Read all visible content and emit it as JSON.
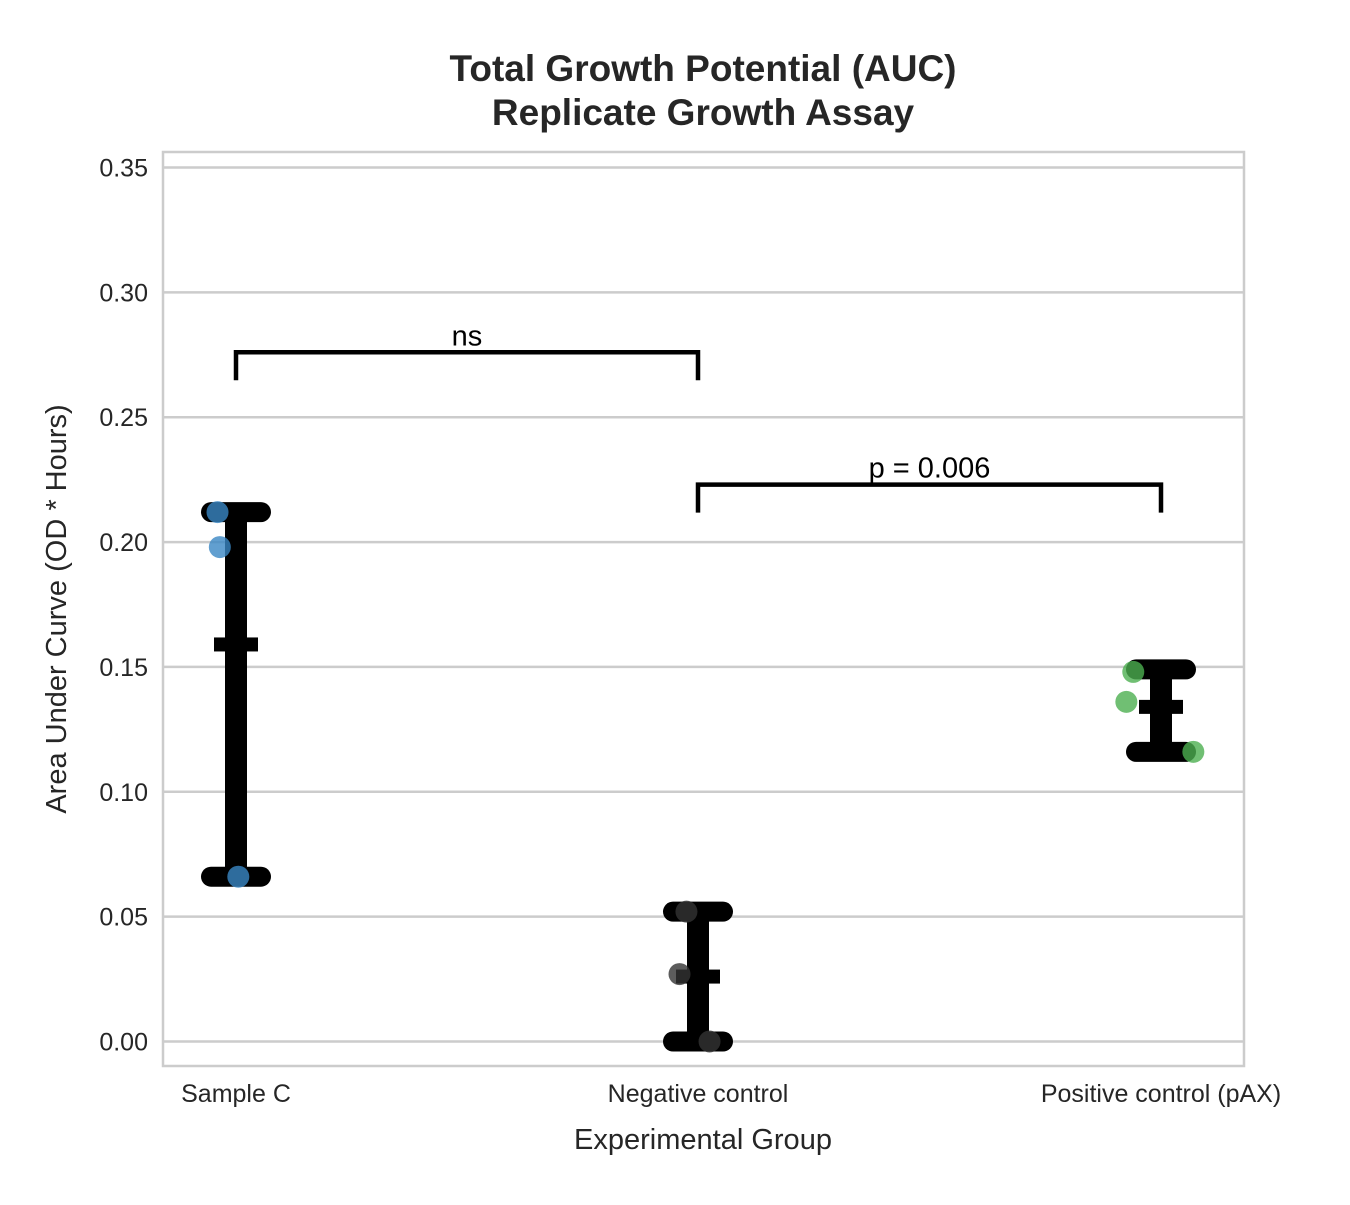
{
  "chart_data": {
    "type": "scatter",
    "title": "Total Growth Potential (AUC)",
    "subtitle": "Replicate Growth Assay",
    "xlabel": "Experimental Group",
    "ylabel": "Area Under Curve (OD * Hours)",
    "categories": [
      "Sample C",
      "Negative control",
      "Positive control (pAX)"
    ],
    "ylim": [
      -0.01,
      0.356
    ],
    "yticks": [
      0.0,
      0.05,
      0.1,
      0.15,
      0.2,
      0.25,
      0.3,
      0.35
    ],
    "ytick_labels": [
      "0.00",
      "0.05",
      "0.10",
      "0.15",
      "0.20",
      "0.25",
      "0.30",
      "0.35"
    ],
    "grid": true,
    "series": [
      {
        "category": "Sample C",
        "color": "#3a87c4",
        "points": [
          {
            "offset": -0.04,
            "y": 0.212
          },
          {
            "offset": -0.035,
            "y": 0.198
          },
          {
            "offset": 0.005,
            "y": 0.066
          }
        ],
        "mean": 0.159,
        "err_low": 0.066,
        "err_high": 0.212
      },
      {
        "category": "Negative control",
        "color": "#333333",
        "points": [
          {
            "offset": -0.025,
            "y": 0.052
          },
          {
            "offset": -0.04,
            "y": 0.027
          },
          {
            "offset": 0.025,
            "y": 0.0
          }
        ],
        "mean": 0.026,
        "err_low": 0.0,
        "err_high": 0.052
      },
      {
        "category": "Positive control (pAX)",
        "color": "#4caf50",
        "points": [
          {
            "offset": -0.06,
            "y": 0.148
          },
          {
            "offset": -0.075,
            "y": 0.136
          },
          {
            "offset": 0.07,
            "y": 0.116
          }
        ],
        "mean": 0.134,
        "err_low": 0.116,
        "err_high": 0.149
      }
    ],
    "annotations": [
      {
        "from": 0,
        "to": 1,
        "y": 0.276,
        "label": "ns"
      },
      {
        "from": 1,
        "to": 2,
        "y": 0.223,
        "label": "p = 0.006"
      }
    ]
  }
}
